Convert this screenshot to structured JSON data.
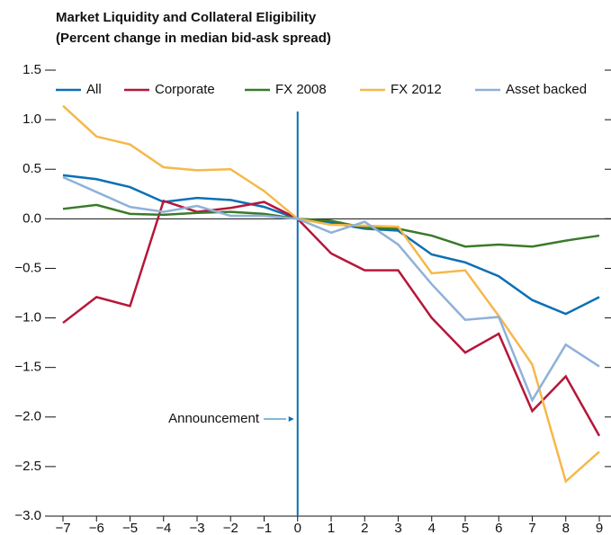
{
  "chart_data": {
    "type": "line",
    "title": "Market Liquidity and Collateral Eligibility",
    "subtitle": "(Percent change in median bid-ask spread)",
    "annotation": "Announcement",
    "x": [
      -7,
      -6,
      -5,
      -4,
      -3,
      -2,
      -1,
      0,
      1,
      2,
      3,
      4,
      5,
      6,
      7,
      8,
      9
    ],
    "series": [
      {
        "name": "All",
        "color": "#0a70b5",
        "values": [
          0.44,
          0.4,
          0.32,
          0.17,
          0.21,
          0.19,
          0.12,
          0,
          -0.04,
          -0.1,
          -0.12,
          -0.36,
          -0.44,
          -0.58,
          -0.82,
          -0.96,
          -0.79
        ]
      },
      {
        "name": "Corporate",
        "color": "#b5173b",
        "values": [
          -1.05,
          -0.79,
          -0.88,
          0.18,
          0.07,
          0.11,
          0.17,
          0,
          -0.35,
          -0.52,
          -0.52,
          -1.0,
          -1.35,
          -1.16,
          -1.94,
          -1.59,
          -2.19
        ]
      },
      {
        "name": "FX 2008",
        "color": "#3a7a2a",
        "values": [
          0.1,
          0.14,
          0.05,
          0.04,
          0.06,
          0.07,
          0.05,
          0,
          -0.02,
          -0.09,
          -0.1,
          -0.17,
          -0.28,
          -0.26,
          -0.28,
          -0.22,
          -0.17
        ]
      },
      {
        "name": "FX 2012",
        "color": "#f5b84b",
        "values": [
          1.14,
          0.83,
          0.75,
          0.52,
          0.49,
          0.5,
          0.28,
          0,
          -0.06,
          -0.07,
          -0.08,
          -0.55,
          -0.52,
          -0.98,
          -1.47,
          -2.65,
          -2.35
        ]
      },
      {
        "name": "Asset backed",
        "color": "#8fb1d9",
        "values": [
          0.42,
          0.27,
          0.12,
          0.07,
          0.13,
          0.03,
          0.03,
          0,
          -0.14,
          -0.03,
          -0.26,
          -0.66,
          -1.02,
          -0.99,
          -1.83,
          -1.27,
          -1.49
        ]
      }
    ],
    "xlim": [
      -7,
      9
    ],
    "xticks": [
      {
        "value": -7,
        "label": "−7"
      },
      {
        "value": -6,
        "label": "−6"
      },
      {
        "value": -5,
        "label": "−5"
      },
      {
        "value": -4,
        "label": "−4"
      },
      {
        "value": -3,
        "label": "−3"
      },
      {
        "value": -2,
        "label": "−2"
      },
      {
        "value": -1,
        "label": "−1"
      },
      0,
      1,
      2,
      3,
      4,
      5,
      6,
      7,
      8,
      9
    ],
    "ylim": [
      -3,
      1.5
    ],
    "yticks": [
      {
        "value": -3,
        "label": "−3.0"
      },
      {
        "value": -2.5,
        "label": "−2.5"
      },
      {
        "value": -2,
        "label": "−2.0"
      },
      {
        "value": -1.5,
        "label": "−1.5"
      },
      {
        "value": -1,
        "label": "−1.0"
      },
      {
        "value": -0.5,
        "label": "−0.5"
      },
      {
        "value": 0,
        "label": "0.0"
      },
      0.5,
      {
        "value": 1,
        "label": "1.0"
      },
      1.5
    ],
    "event_x": 0,
    "legend": "top"
  }
}
